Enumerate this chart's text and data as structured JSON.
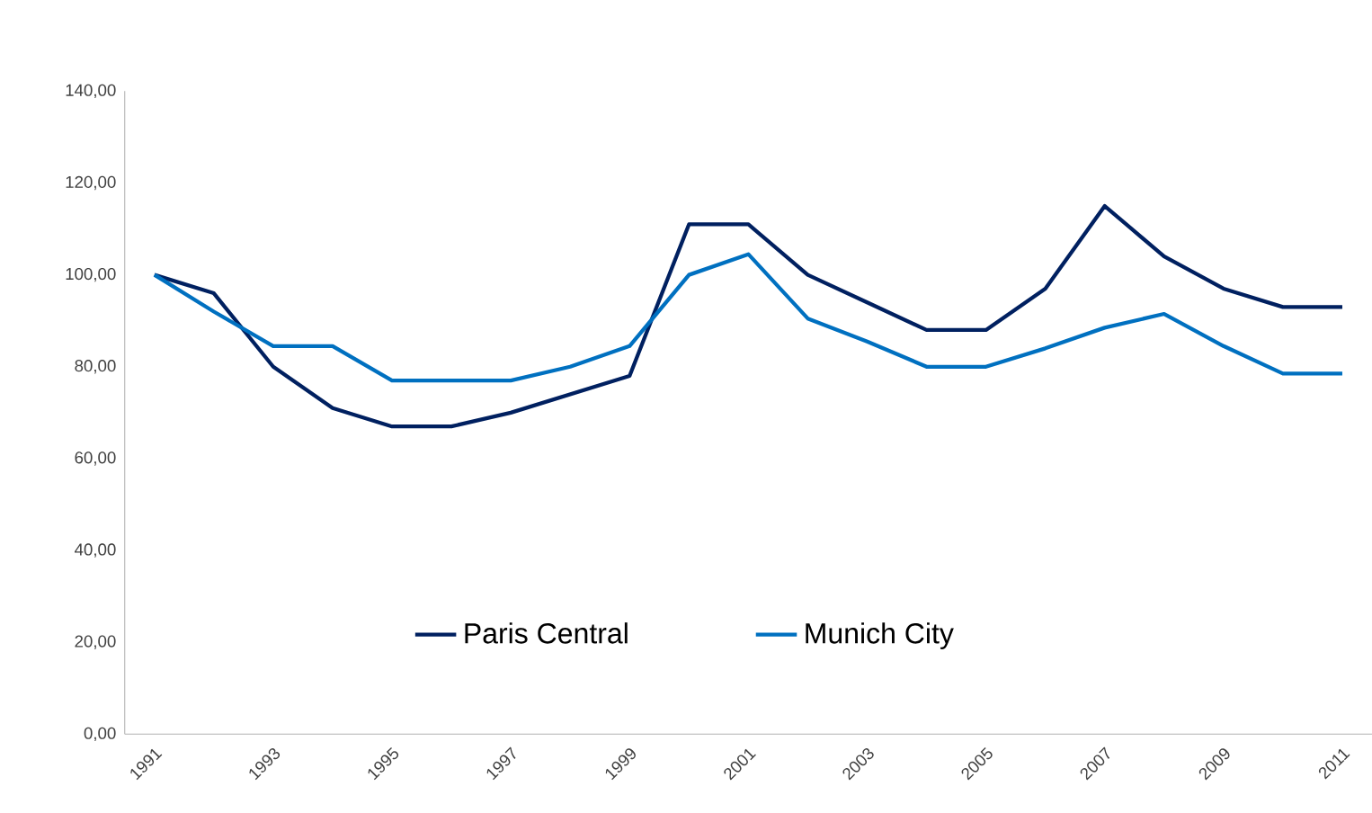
{
  "chart_data": {
    "type": "line",
    "categories": [
      "1991",
      null,
      "1993",
      null,
      "1995",
      null,
      "1997",
      null,
      "1999",
      null,
      "2001",
      null,
      "2003",
      null,
      "2005",
      null,
      "2007",
      null,
      "2009",
      null,
      "2011"
    ],
    "series": [
      {
        "name": "Paris Central",
        "color": "#002060",
        "values": [
          100,
          96,
          80,
          71,
          67,
          67,
          70,
          74,
          78,
          111,
          111,
          100,
          94,
          88,
          88,
          97,
          115,
          104,
          97,
          93,
          93
        ]
      },
      {
        "name": "Munich City",
        "color": "#0070c0",
        "values": [
          100,
          92,
          84.5,
          84.5,
          77,
          77,
          77,
          80,
          84.5,
          100,
          104.5,
          90.5,
          85.5,
          80,
          80,
          84,
          88.5,
          91.5,
          84.5,
          78.5,
          78.5
        ]
      }
    ],
    "ylim": [
      0,
      140
    ],
    "yticks": [
      {
        "value": 0,
        "label": "0,00"
      },
      {
        "value": 20,
        "label": "20,00"
      },
      {
        "value": 40,
        "label": "40,00"
      },
      {
        "value": 60,
        "label": "60,00"
      },
      {
        "value": 80,
        "label": "80,00"
      },
      {
        "value": 100,
        "label": "100,00"
      },
      {
        "value": 120,
        "label": "120,00"
      },
      {
        "value": 140,
        "label": "140,00"
      }
    ],
    "grid": false,
    "legend": "bottom",
    "marker": "none",
    "line_style": "solid"
  }
}
